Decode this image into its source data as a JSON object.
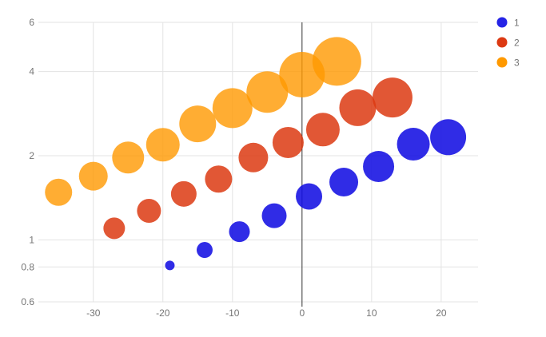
{
  "chart_data": {
    "type": "scatter",
    "subtype": "bubble",
    "title": "",
    "xlabel": "",
    "ylabel": "",
    "grid": true,
    "background": "#ffffff",
    "x_axis": {
      "min": -37.9,
      "max": 25.3,
      "ticks": [
        {
          "value": -30,
          "label": "-30"
        },
        {
          "value": -20,
          "label": "-20"
        },
        {
          "value": -10,
          "label": "-10"
        },
        {
          "value": 0,
          "label": "0"
        },
        {
          "value": 10,
          "label": "10"
        },
        {
          "value": 20,
          "label": "20"
        }
      ]
    },
    "y_axis": {
      "scale": "log",
      "min": 0.6,
      "max": 6,
      "ticks": [
        {
          "value": 0.6,
          "label": "0.6"
        },
        {
          "value": 0.8,
          "label": "0.8"
        },
        {
          "value": 1,
          "label": "1"
        },
        {
          "value": 2,
          "label": "2"
        },
        {
          "value": 4,
          "label": "4"
        },
        {
          "value": 6,
          "label": "6"
        }
      ]
    },
    "colors": {
      "grid": "#e3e3e3",
      "zero_axis": "#333333",
      "tick_label": "#757575",
      "legend_label": "#757575"
    },
    "legend": {
      "position": "top-right",
      "items": [
        {
          "label": "1",
          "color": "#2523e6"
        },
        {
          "label": "2",
          "color": "#dc3912"
        },
        {
          "label": "3",
          "color": "#ff9900"
        }
      ]
    },
    "series": [
      {
        "name": "1",
        "color": "#130fe2",
        "fill_opacity": 0.88,
        "points": [
          {
            "x": -19,
            "y": 0.81,
            "r": 6
          },
          {
            "x": -14,
            "y": 0.92,
            "r": 10
          },
          {
            "x": -9,
            "y": 1.07,
            "r": 13
          },
          {
            "x": -4,
            "y": 1.22,
            "r": 15.5
          },
          {
            "x": 1,
            "y": 1.43,
            "r": 16.5
          },
          {
            "x": 6,
            "y": 1.61,
            "r": 18
          },
          {
            "x": 11,
            "y": 1.83,
            "r": 19.5
          },
          {
            "x": 16,
            "y": 2.2,
            "r": 20.5
          },
          {
            "x": 21,
            "y": 2.33,
            "r": 22.5
          }
        ]
      },
      {
        "name": "2",
        "color": "#dc3912",
        "fill_opacity": 0.85,
        "points": [
          {
            "x": -27,
            "y": 1.1,
            "r": 13.5
          },
          {
            "x": -22,
            "y": 1.27,
            "r": 15
          },
          {
            "x": -17,
            "y": 1.46,
            "r": 16
          },
          {
            "x": -12,
            "y": 1.65,
            "r": 17
          },
          {
            "x": -7,
            "y": 1.97,
            "r": 18.5
          },
          {
            "x": -2,
            "y": 2.23,
            "r": 19.5
          },
          {
            "x": 3,
            "y": 2.48,
            "r": 21
          },
          {
            "x": 8,
            "y": 2.97,
            "r": 23
          },
          {
            "x": 13,
            "y": 3.23,
            "r": 25
          }
        ]
      },
      {
        "name": "3",
        "color": "#ff9900",
        "fill_opacity": 0.8,
        "points": [
          {
            "x": -35,
            "y": 1.48,
            "r": 17
          },
          {
            "x": -30,
            "y": 1.69,
            "r": 18
          },
          {
            "x": -25,
            "y": 1.97,
            "r": 20
          },
          {
            "x": -20,
            "y": 2.19,
            "r": 21
          },
          {
            "x": -15,
            "y": 2.6,
            "r": 23
          },
          {
            "x": -10,
            "y": 2.96,
            "r": 25
          },
          {
            "x": -5,
            "y": 3.38,
            "r": 26
          },
          {
            "x": 0,
            "y": 3.9,
            "r": 28.5
          },
          {
            "x": 5,
            "y": 4.35,
            "r": 30.5
          }
        ]
      }
    ]
  }
}
